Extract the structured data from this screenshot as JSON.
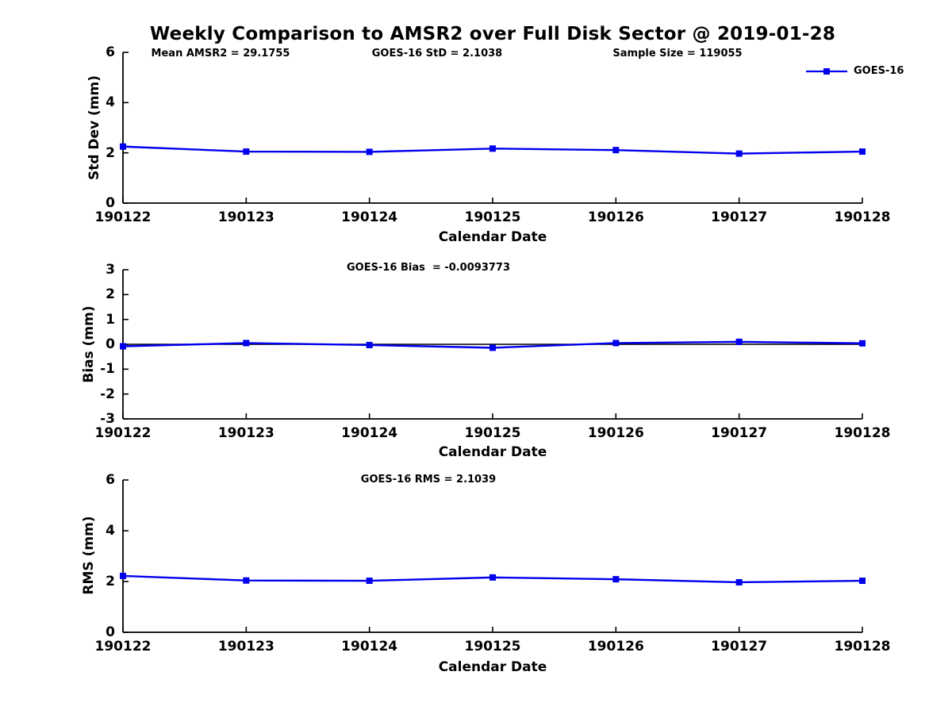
{
  "title": "Weekly Comparison to AMSR2 over Full Disk Sector @ 2019-01-28",
  "legend": {
    "label": "GOES-16",
    "color": "#0000ee"
  },
  "x_axis_label": "Calendar Date",
  "colors": {
    "series": "#0000ee",
    "axis": "#000000",
    "background": "#ffffff"
  },
  "chart_data": [
    {
      "type": "line",
      "name": "std-dev",
      "series_name": "GOES-16",
      "x": [
        "190122",
        "190123",
        "190124",
        "190125",
        "190126",
        "190127",
        "190128"
      ],
      "values": [
        2.25,
        2.05,
        2.04,
        2.17,
        2.11,
        1.97,
        2.05
      ],
      "ylabel": "Std Dev (mm)",
      "xlabel": "Calendar Date",
      "ylim": [
        0,
        6
      ],
      "yticks": [
        "6",
        "4",
        "2",
        "0"
      ],
      "grid": "off",
      "legend_position": "top-right",
      "marker": "square",
      "annotations": [
        "Mean AMSR2 = 29.1755",
        "GOES-16 StD = 2.1038",
        "Sample Size = 119055"
      ]
    },
    {
      "type": "line",
      "name": "bias",
      "series_name": "GOES-16",
      "x": [
        "190122",
        "190123",
        "190124",
        "190125",
        "190126",
        "190127",
        "190128"
      ],
      "values": [
        -0.08,
        0.05,
        -0.03,
        -0.14,
        0.05,
        0.1,
        0.04
      ],
      "ylabel": "Bias (mm)",
      "xlabel": "Calendar Date",
      "ylim": [
        -3,
        3
      ],
      "yticks": [
        "3",
        "2",
        "1",
        "0",
        "-1",
        "-2",
        "-3"
      ],
      "grid": "off",
      "marker": "square",
      "zero_line": true,
      "annotation": "GOES-16 Bias  = -0.0093773"
    },
    {
      "type": "line",
      "name": "rms",
      "series_name": "GOES-16",
      "x": [
        "190122",
        "190123",
        "190124",
        "190125",
        "190126",
        "190127",
        "190128"
      ],
      "values": [
        2.22,
        2.04,
        2.03,
        2.16,
        2.09,
        1.97,
        2.03
      ],
      "ylabel": "RMS (mm)",
      "xlabel": "Calendar Date",
      "ylim": [
        0,
        6
      ],
      "yticks": [
        "6",
        "4",
        "2",
        "0"
      ],
      "grid": "off",
      "marker": "square",
      "annotation": "GOES-16 RMS = 2.1039"
    }
  ]
}
